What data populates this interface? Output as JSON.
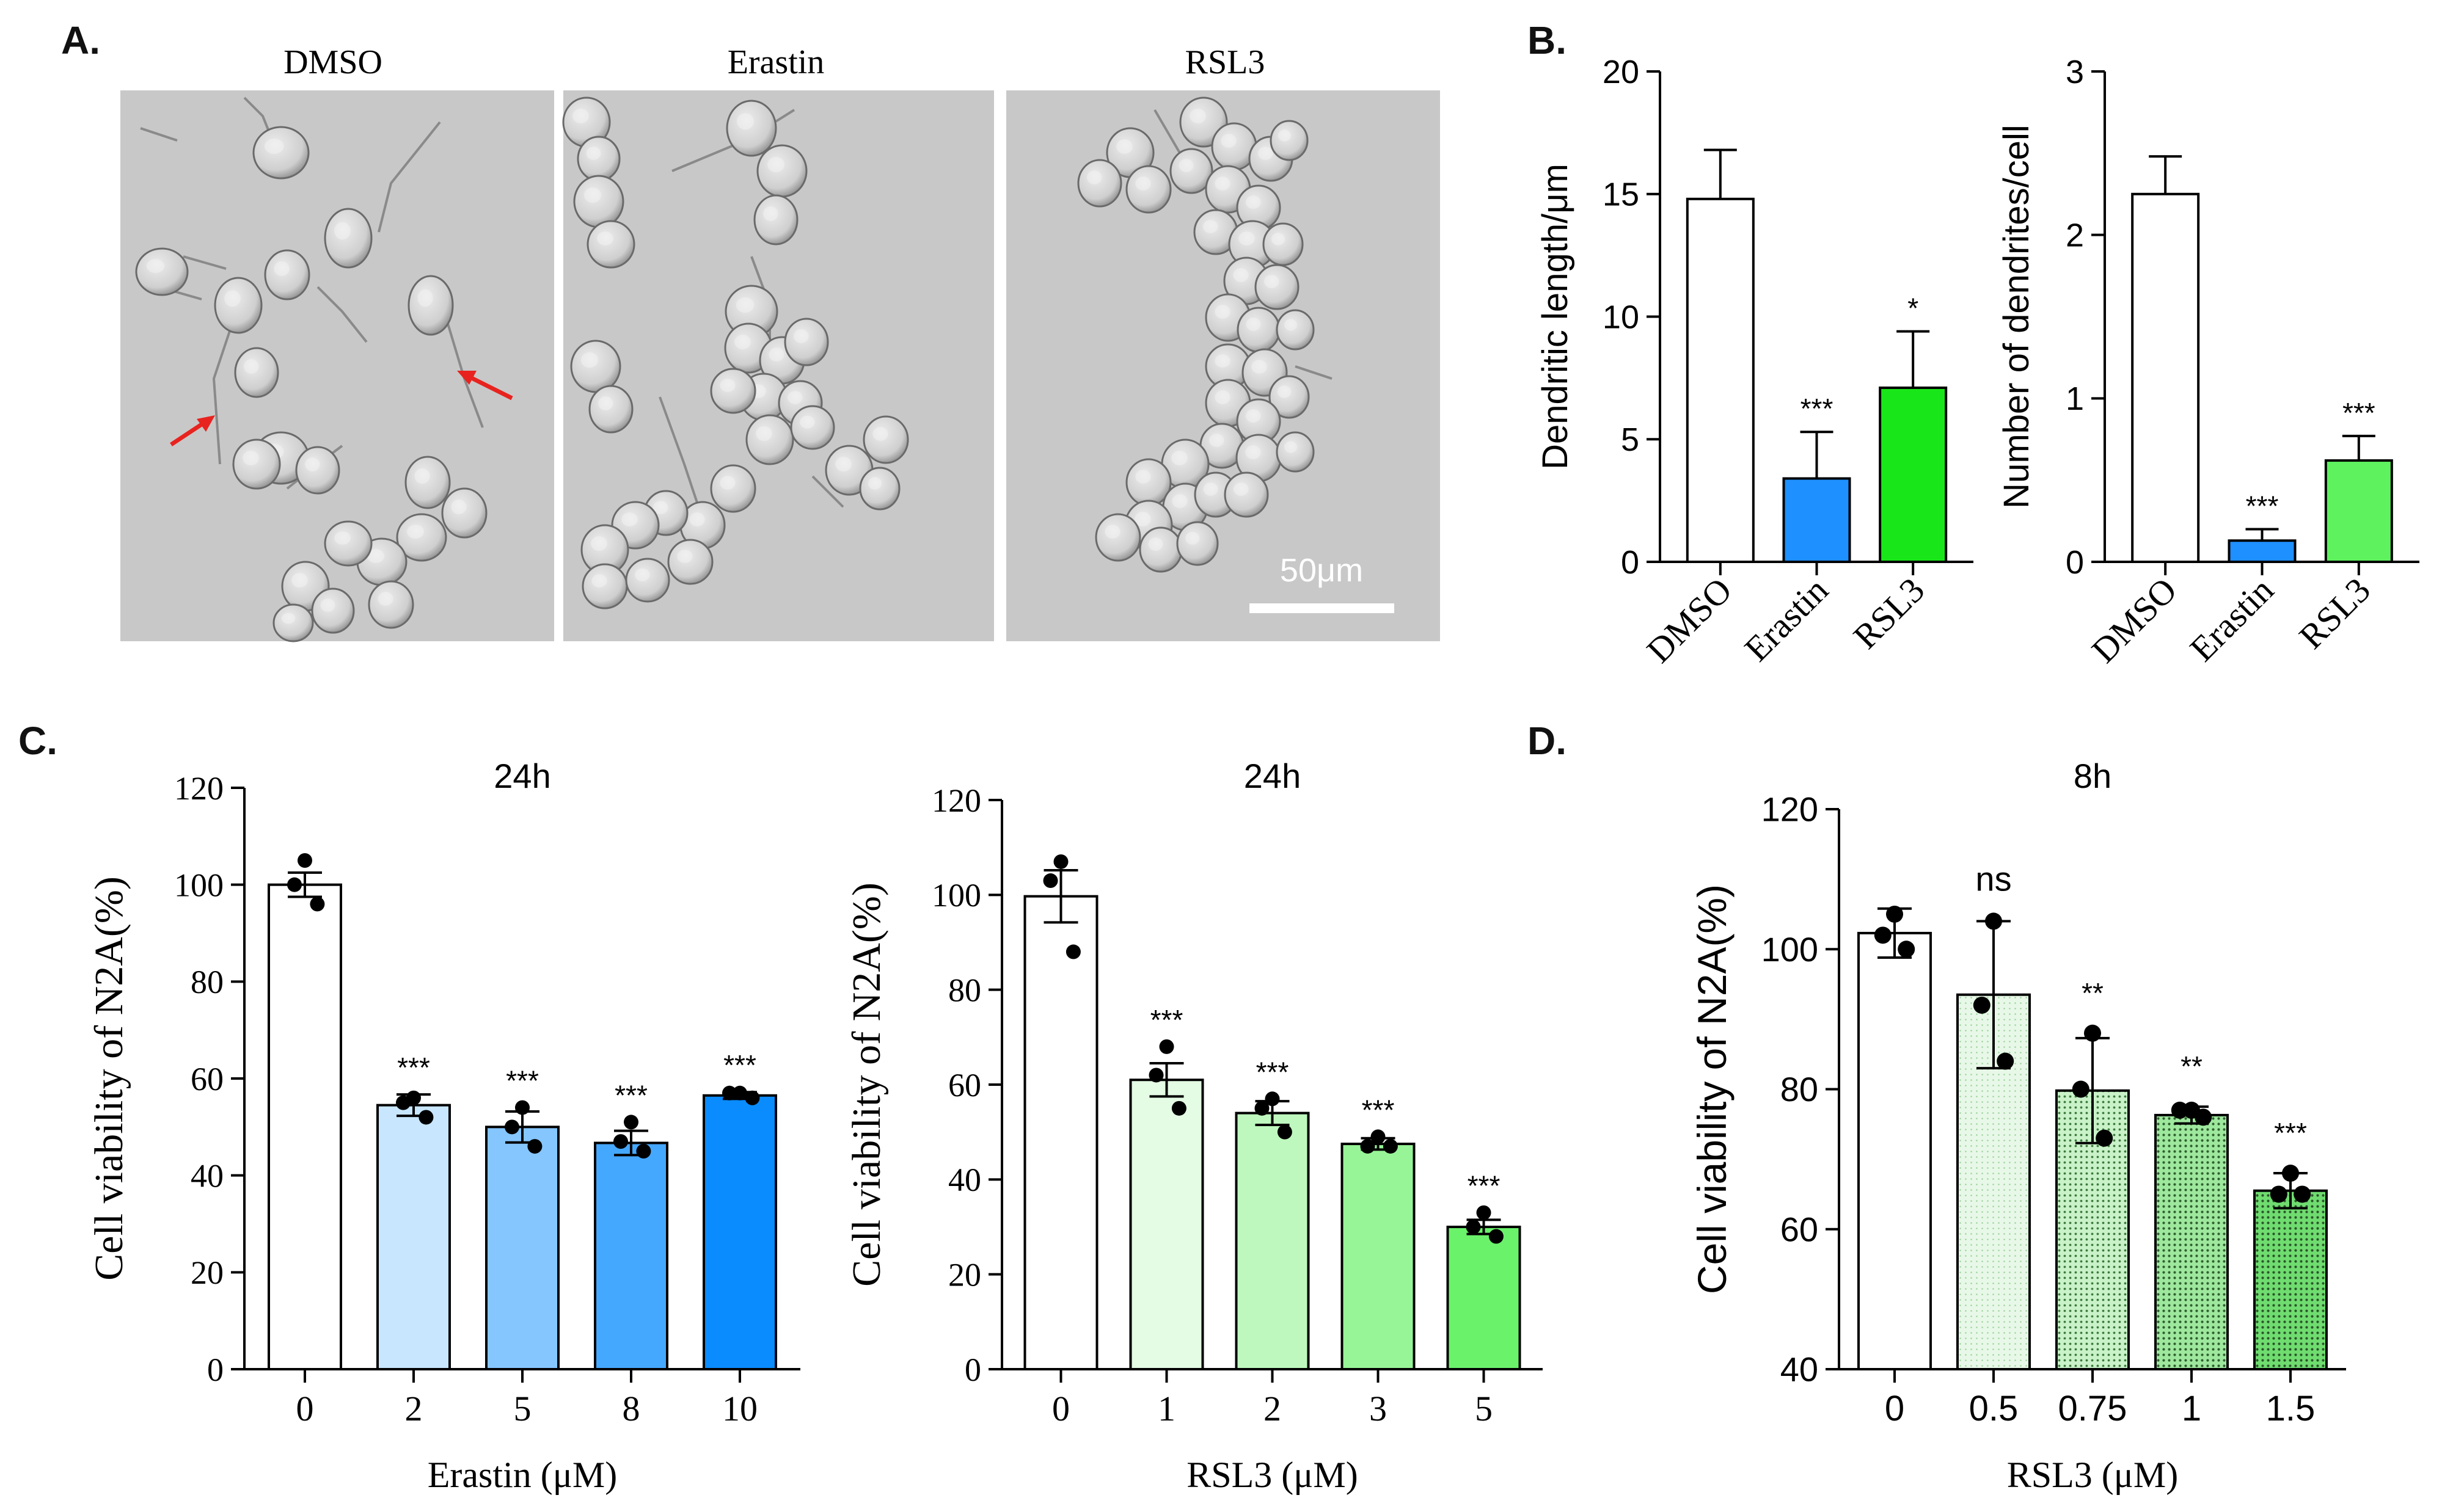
{
  "panel_labels": [
    "A.",
    "B.",
    "C.",
    "D."
  ],
  "micrographs": {
    "titles": [
      "DMSO",
      "Erastin",
      "RSL3"
    ],
    "scale_bar_label": "50μm",
    "arrow_color": "#e8231f",
    "background_color": "#c9c9c9"
  },
  "colors": {
    "white": "#ffffff",
    "blue_bar": "#1e90ff",
    "green_bar": "#19e619",
    "light_green_bar": "#5ef25e",
    "erastin_blues": [
      "#c8e6fd",
      "#85c6ff",
      "#45a8ff",
      "#0a8cff"
    ],
    "rsl3_greens": [
      "#e4fbe4",
      "#bef8be",
      "#97f597",
      "#6bf26b"
    ],
    "rsl3_8h_greens": [
      "#e8f8e8",
      "#c9f2c9",
      "#9ee89e",
      "#6fdc6f"
    ]
  },
  "chart_data": [
    {
      "type": "bar",
      "categories": [
        "DMSO",
        "Erastin",
        "RSL3"
      ],
      "values": [
        14.8,
        3.4,
        7.1
      ],
      "errors": [
        2.0,
        1.9,
        2.3
      ],
      "significance": [
        "",
        "***",
        "*"
      ],
      "title": "",
      "xlabel": "",
      "ylabel": "Dendritic length/μm",
      "ylim": [
        0,
        20
      ],
      "yticks": [
        "0",
        "5",
        "10",
        "15",
        "20"
      ]
    },
    {
      "type": "bar",
      "categories": [
        "DMSO",
        "Erastin",
        "RSL3"
      ],
      "values": [
        2.25,
        0.13,
        0.62
      ],
      "errors": [
        0.23,
        0.07,
        0.15
      ],
      "significance": [
        "",
        "***",
        "***"
      ],
      "title": "",
      "xlabel": "",
      "ylabel": "Number of dendrites/cell",
      "ylim": [
        0,
        3
      ],
      "yticks": [
        "0",
        "1",
        "2",
        "3"
      ]
    },
    {
      "type": "bar",
      "categories": [
        "0",
        "2",
        "5",
        "8",
        "10"
      ],
      "values": [
        100,
        54.5,
        50,
        46.7,
        56.5
      ],
      "errors": [
        2.5,
        2.2,
        3.2,
        2.5,
        0.7
      ],
      "points": [
        [
          105,
          100,
          96
        ],
        [
          56,
          55,
          52
        ],
        [
          54,
          50,
          46
        ],
        [
          51,
          47,
          45
        ],
        [
          57,
          57,
          56
        ]
      ],
      "significance": [
        "",
        "***",
        "***",
        "***",
        "***"
      ],
      "title": "24h",
      "xlabel": "Erastin (μM)",
      "ylabel": "Cell viability of N2A(%)",
      "ylim": [
        0,
        120
      ],
      "yticks": [
        "0",
        "20",
        "40",
        "60",
        "80",
        "100",
        "120"
      ]
    },
    {
      "type": "bar",
      "categories": [
        "0",
        "1",
        "2",
        "3",
        "5"
      ],
      "values": [
        99.7,
        61,
        54,
        47.5,
        30
      ],
      "errors": [
        5.5,
        3.5,
        2.5,
        1.2,
        1.5
      ],
      "points": [
        [
          107,
          103,
          88
        ],
        [
          68,
          62,
          55
        ],
        [
          57,
          55,
          50
        ],
        [
          49,
          47,
          47
        ],
        [
          33,
          30,
          28
        ]
      ],
      "significance": [
        "",
        "***",
        "***",
        "***",
        "***"
      ],
      "title": "24h",
      "xlabel": "RSL3 (μM)",
      "ylabel": "Cell viability of N2A(%)",
      "ylim": [
        0,
        120
      ],
      "yticks": [
        "0",
        "20",
        "40",
        "60",
        "80",
        "100",
        "120"
      ]
    },
    {
      "type": "bar",
      "categories": [
        "0",
        "0.5",
        "0.75",
        "1",
        "1.5"
      ],
      "values": [
        102.3,
        93.5,
        79.8,
        76.3,
        65.5
      ],
      "errors": [
        3.5,
        10.5,
        7.5,
        1.2,
        2.5
      ],
      "points": [
        [
          105,
          102,
          100
        ],
        [
          104,
          92,
          84
        ],
        [
          88,
          80,
          73
        ],
        [
          77,
          77,
          76
        ],
        [
          68,
          65,
          65
        ]
      ],
      "significance": [
        "ns",
        "**",
        "**",
        "***"
      ],
      "significance_first_index": 1,
      "title": "8h",
      "xlabel": "RSL3 (μM)",
      "ylabel": "Cell viability of N2A(%)",
      "ylim": [
        40,
        120
      ],
      "yticks": [
        "40",
        "60",
        "80",
        "100",
        "120"
      ]
    }
  ]
}
